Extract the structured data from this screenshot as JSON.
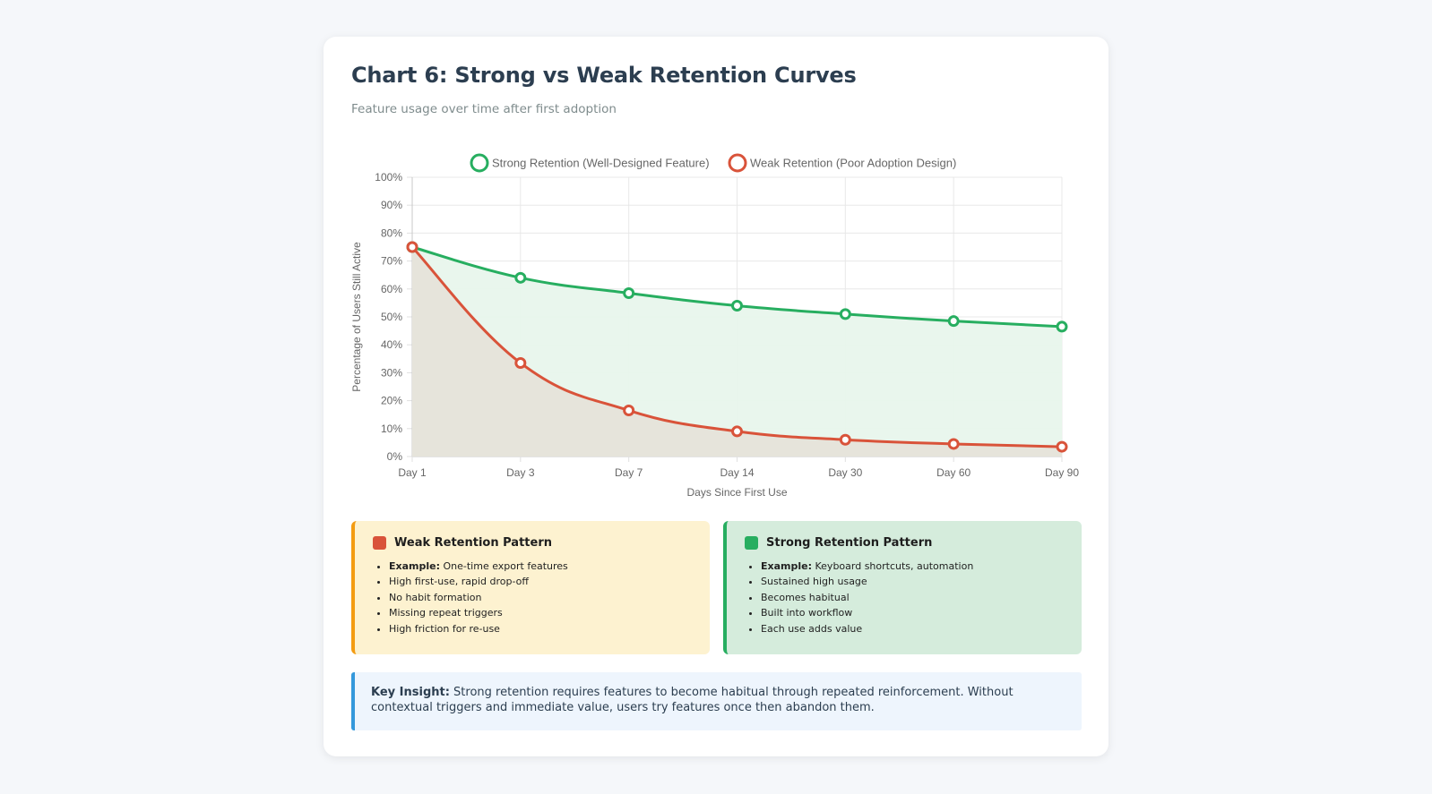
{
  "page": {
    "title": "Chart 6: Strong vs Weak Retention Curves",
    "subtitle": "Feature usage over time after first adoption"
  },
  "chart_data": {
    "type": "line",
    "title": "Chart 6: Strong vs Weak Retention Curves",
    "xlabel": "Days Since First Use",
    "ylabel": "Percentage of Users Still Active",
    "categories": [
      "Day 1",
      "Day 3",
      "Day 7",
      "Day 14",
      "Day 30",
      "Day 60",
      "Day 90"
    ],
    "ylim": [
      0,
      100
    ],
    "yticks": [
      "0%",
      "10%",
      "20%",
      "30%",
      "40%",
      "50%",
      "60%",
      "70%",
      "80%",
      "90%",
      "100%"
    ],
    "legend_position": "top",
    "grid": true,
    "series": [
      {
        "name": "Strong Retention (Well-Designed Feature)",
        "color": "#27ae60",
        "fill": "#e8f6ec",
        "values": [
          75,
          64,
          58.5,
          54,
          51,
          48.5,
          46.5
        ]
      },
      {
        "name": "Weak Retention (Poor Adoption Design)",
        "color": "#d9533a",
        "fill": "#e6e3da",
        "values": [
          75,
          33.5,
          16.5,
          9,
          6,
          4.5,
          3.5
        ]
      }
    ]
  },
  "panels": {
    "weak": {
      "title": "Weak Retention Pattern",
      "color": "#d9533a",
      "example_label": "Example:",
      "example_text": " One-time export features",
      "items": [
        "High first-use, rapid drop-off",
        "No habit formation",
        "Missing repeat triggers",
        "High friction for re-use"
      ]
    },
    "strong": {
      "title": "Strong Retention Pattern",
      "color": "#27ae60",
      "example_label": "Example:",
      "example_text": " Keyboard shortcuts, automation",
      "items": [
        "Sustained high usage",
        "Becomes habitual",
        "Built into workflow",
        "Each use adds value"
      ]
    }
  },
  "insight": {
    "label": "Key Insight:",
    "text": " Strong retention requires features to become habitual through repeated reinforcement. Without contextual triggers and immediate value, users try features once then abandon them."
  }
}
